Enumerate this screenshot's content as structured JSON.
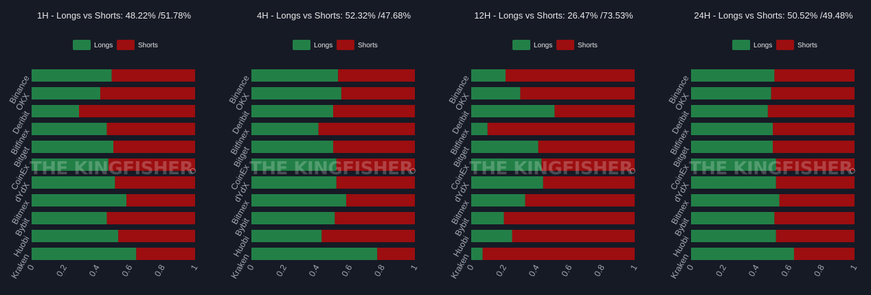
{
  "colors": {
    "background": "#161a25",
    "longs": "#228047",
    "shorts": "#9c0e10",
    "text": "#e6e6e6",
    "axis_text": "#a3a7b3"
  },
  "watermark": "THE KINGFISHER",
  "chart_data": [
    {
      "type": "bar",
      "orientation": "horizontal",
      "stacked": true,
      "title": "1H - Longs vs Shorts: 48.22% /51.78%",
      "categories": [
        "Binance",
        "OKX",
        "Deribit",
        "Bitfinex",
        "Bitget",
        "CoinEx",
        "dYdX",
        "Bitmex",
        "Bybit",
        "Huobi",
        "Kraken"
      ],
      "series": [
        {
          "name": "Longs",
          "values": [
            0.49,
            0.42,
            0.29,
            0.46,
            0.5,
            0.47,
            0.51,
            0.58,
            0.46,
            0.53,
            0.64
          ]
        },
        {
          "name": "Shorts",
          "values": [
            0.51,
            0.58,
            0.71,
            0.54,
            0.5,
            0.53,
            0.49,
            0.42,
            0.54,
            0.47,
            0.36
          ]
        }
      ],
      "xlim": [
        0,
        1
      ],
      "xticks": [
        "0",
        "0.2",
        "0.4",
        "0.6",
        "0.8",
        "1"
      ],
      "legend": "top-center",
      "grid": false
    },
    {
      "type": "bar",
      "orientation": "horizontal",
      "stacked": true,
      "title": "4H - Longs vs Shorts: 52.32% /47.68%",
      "categories": [
        "Binance",
        "OKX",
        "Deribit",
        "Bitfinex",
        "Bitget",
        "CoinEx",
        "dYdX",
        "Bitmex",
        "Bybit",
        "Huobi",
        "Kraken"
      ],
      "series": [
        {
          "name": "Longs",
          "values": [
            0.53,
            0.55,
            0.5,
            0.41,
            0.5,
            0.52,
            0.52,
            0.58,
            0.51,
            0.43,
            0.77
          ]
        },
        {
          "name": "Shorts",
          "values": [
            0.47,
            0.45,
            0.5,
            0.59,
            0.5,
            0.48,
            0.48,
            0.42,
            0.49,
            0.57,
            0.23
          ]
        }
      ],
      "xlim": [
        0,
        1
      ],
      "xticks": [
        "0",
        "0.2",
        "0.4",
        "0.6",
        "0.8",
        "1"
      ],
      "legend": "top-center",
      "grid": false
    },
    {
      "type": "bar",
      "orientation": "horizontal",
      "stacked": true,
      "title": "12H - Longs vs Shorts: 26.47% /73.53%",
      "categories": [
        "Binance",
        "OKX",
        "Deribit",
        "Bitfinex",
        "Bitget",
        "CoinEx",
        "dYdX",
        "Bitmex",
        "Bybit",
        "Huobi",
        "Kraken"
      ],
      "series": [
        {
          "name": "Longs",
          "values": [
            0.21,
            0.3,
            0.51,
            0.1,
            0.41,
            0.43,
            0.44,
            0.33,
            0.2,
            0.25,
            0.07
          ]
        },
        {
          "name": "Shorts",
          "values": [
            0.79,
            0.7,
            0.49,
            0.9,
            0.59,
            0.57,
            0.56,
            0.67,
            0.8,
            0.75,
            0.93
          ]
        }
      ],
      "xlim": [
        0,
        1
      ],
      "xticks": [
        "0",
        "0.2",
        "0.4",
        "0.6",
        "0.8",
        "1"
      ],
      "legend": "top-center",
      "grid": false
    },
    {
      "type": "bar",
      "orientation": "horizontal",
      "stacked": true,
      "title": "24H - Longs vs Shorts: 50.52% /49.48%",
      "categories": [
        "Binance",
        "OKX",
        "Deribit",
        "Bitfinex",
        "Bitget",
        "CoinEx",
        "dYdX",
        "Bitmex",
        "Bybit",
        "Huobi",
        "Kraken"
      ],
      "series": [
        {
          "name": "Longs",
          "values": [
            0.51,
            0.49,
            0.47,
            0.5,
            0.5,
            0.52,
            0.52,
            0.54,
            0.51,
            0.52,
            0.63
          ]
        },
        {
          "name": "Shorts",
          "values": [
            0.49,
            0.51,
            0.53,
            0.5,
            0.5,
            0.48,
            0.48,
            0.46,
            0.49,
            0.48,
            0.37
          ]
        }
      ],
      "xlim": [
        0,
        1
      ],
      "xticks": [
        "0",
        "0.2",
        "0.4",
        "0.6",
        "0.8",
        "1"
      ],
      "legend": "top-center",
      "grid": false
    }
  ]
}
